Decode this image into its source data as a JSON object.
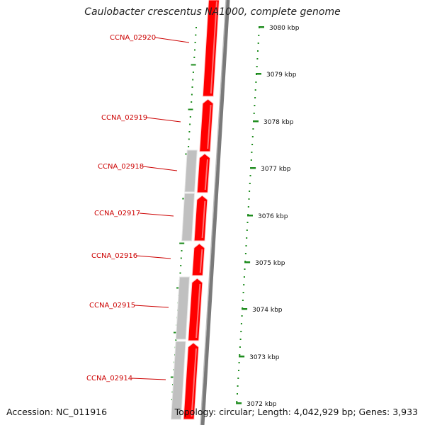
{
  "title": "Caulobacter crescentus NA1000, complete genome",
  "footer": {
    "accession": "Accession: NC_011916",
    "summary": "Topology: circular; Length: 4,042,929 bp; Genes: 3,933"
  },
  "colors": {
    "gene_red": "#ff0000",
    "gene_grey": "#c0c0c0",
    "backbone": "#7a7a7a",
    "tick_green": "#1e8c1e",
    "label_red": "#cc0000"
  },
  "scale_labels": [
    {
      "text": "3080 kbp"
    },
    {
      "text": "3079 kbp"
    },
    {
      "text": "3078 kbp"
    },
    {
      "text": "3077 kbp"
    },
    {
      "text": "3076 kbp"
    },
    {
      "text": "3075 kbp"
    },
    {
      "text": "3074 kbp"
    },
    {
      "text": "3073 kbp"
    },
    {
      "text": "3072 kbp"
    }
  ],
  "gene_labels": [
    {
      "text": "CCNA_02920"
    },
    {
      "text": "CCNA_02919"
    },
    {
      "text": "CCNA_02918"
    },
    {
      "text": "CCNA_02917"
    },
    {
      "text": "CCNA_02916"
    },
    {
      "text": "CCNA_02915"
    },
    {
      "text": "CCNA_02914"
    }
  ]
}
